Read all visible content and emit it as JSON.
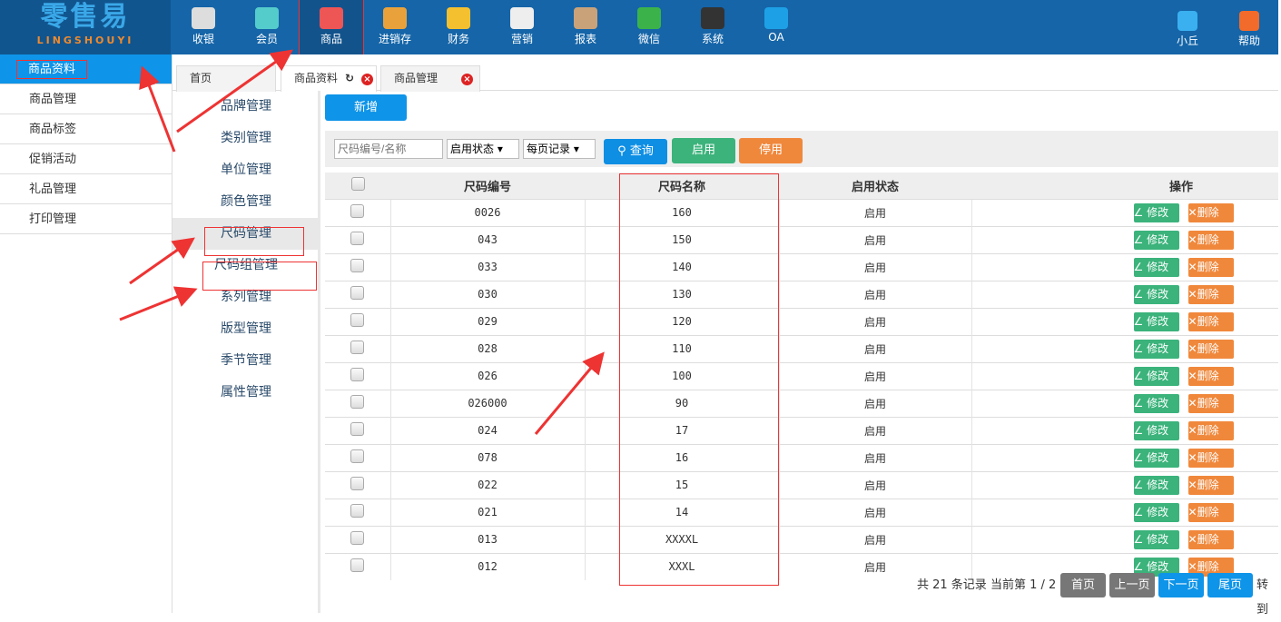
{
  "logo": {
    "cn": "零售易",
    "en": "LINGSHOUYI"
  },
  "topnav": [
    {
      "label": "收银",
      "icon": "cash-register-icon",
      "color": "#ddd"
    },
    {
      "label": "会员",
      "icon": "member-icon",
      "color": "#5cc"
    },
    {
      "label": "商品",
      "icon": "goods-icon",
      "color": "#e55"
    },
    {
      "label": "进销存",
      "icon": "inventory-icon",
      "color": "#e9a23b"
    },
    {
      "label": "财务",
      "icon": "finance-icon",
      "color": "#f4c030"
    },
    {
      "label": "营销",
      "icon": "megaphone-icon",
      "color": "#eee"
    },
    {
      "label": "报表",
      "icon": "report-icon",
      "color": "#c9a27a"
    },
    {
      "label": "微信",
      "icon": "wechat-icon",
      "color": "#3bb34a"
    },
    {
      "label": "系统",
      "icon": "monitor-icon",
      "color": "#333"
    },
    {
      "label": "OA",
      "icon": "oa-icon",
      "color": "#1ea0e6"
    }
  ],
  "user": {
    "name": "小丘",
    "help": "帮助"
  },
  "sidebar": [
    "商品资料",
    "商品管理",
    "商品标签",
    "促销活动",
    "礼品管理",
    "打印管理"
  ],
  "submenu": [
    "品牌管理",
    "类别管理",
    "单位管理",
    "颜色管理",
    "尺码管理",
    "尺码组管理",
    "系列管理",
    "版型管理",
    "季节管理",
    "属性管理"
  ],
  "tabs": [
    "首页",
    "商品资料",
    "商品管理"
  ],
  "toolbar": {
    "add": "新增"
  },
  "filter": {
    "placeholder": "尺码编号/名称",
    "status": "启用状态",
    "per_page": "每页记录",
    "query": "查询",
    "enable": "启用",
    "disable": "停用"
  },
  "table": {
    "headers": [
      "尺码编号",
      "尺码名称",
      "启用状态",
      "操作"
    ],
    "edit": "修改",
    "delete": "删除",
    "rows": [
      [
        "0026",
        "160",
        "启用"
      ],
      [
        "043",
        "150",
        "启用"
      ],
      [
        "033",
        "140",
        "启用"
      ],
      [
        "030",
        "130",
        "启用"
      ],
      [
        "029",
        "120",
        "启用"
      ],
      [
        "028",
        "110",
        "启用"
      ],
      [
        "026",
        "100",
        "启用"
      ],
      [
        "026000",
        "90",
        "启用"
      ],
      [
        "024",
        "17",
        "启用"
      ],
      [
        "078",
        "16",
        "启用"
      ],
      [
        "022",
        "15",
        "启用"
      ],
      [
        "021",
        "14",
        "启用"
      ],
      [
        "013",
        "XXXXL",
        "启用"
      ],
      [
        "012",
        "XXXL",
        "启用"
      ]
    ]
  },
  "pager": {
    "info": "共 21 条记录 当前第 1 / 2",
    "first": "首页",
    "prev": "上一页",
    "next": "下一页",
    "last": "尾页",
    "goto": "转到"
  }
}
